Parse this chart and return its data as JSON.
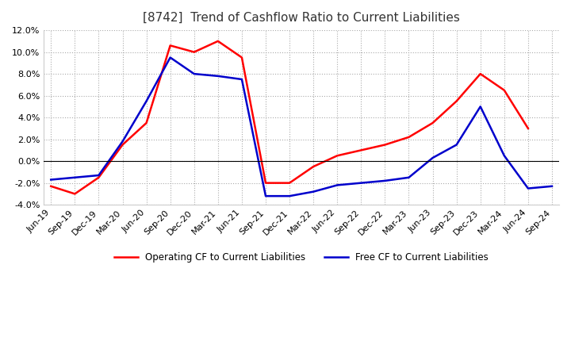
{
  "title": "[8742]  Trend of Cashflow Ratio to Current Liabilities",
  "x_labels": [
    "Jun-19",
    "Sep-19",
    "Dec-19",
    "Mar-20",
    "Jun-20",
    "Sep-20",
    "Dec-20",
    "Mar-21",
    "Jun-21",
    "Sep-21",
    "Dec-21",
    "Mar-22",
    "Jun-22",
    "Sep-22",
    "Dec-22",
    "Mar-23",
    "Jun-23",
    "Sep-23",
    "Dec-23",
    "Mar-24",
    "Jun-24",
    "Sep-24"
  ],
  "operating_cf": [
    -2.3,
    -3.0,
    -1.5,
    1.5,
    3.5,
    10.6,
    10.0,
    11.0,
    9.5,
    -2.0,
    -2.0,
    -0.5,
    0.5,
    1.0,
    1.5,
    2.2,
    3.5,
    5.5,
    8.0,
    6.5,
    3.0,
    null
  ],
  "free_cf": [
    -1.7,
    -1.5,
    -1.3,
    1.8,
    5.5,
    9.5,
    8.0,
    7.8,
    7.5,
    -3.2,
    -3.2,
    -2.8,
    -2.2,
    -2.0,
    -1.8,
    -1.5,
    0.3,
    1.5,
    5.0,
    0.5,
    -2.5,
    -2.3
  ],
  "ylim": [
    -4.0,
    12.0
  ],
  "yticks": [
    -4.0,
    -2.0,
    0.0,
    2.0,
    4.0,
    6.0,
    8.0,
    10.0,
    12.0
  ],
  "operating_color": "#ff0000",
  "free_color": "#0000cc",
  "background_color": "#ffffff",
  "grid_color": "#aaaaaa",
  "title_fontsize": 11,
  "tick_fontsize": 8,
  "legend_labels": [
    "Operating CF to Current Liabilities",
    "Free CF to Current Liabilities"
  ]
}
